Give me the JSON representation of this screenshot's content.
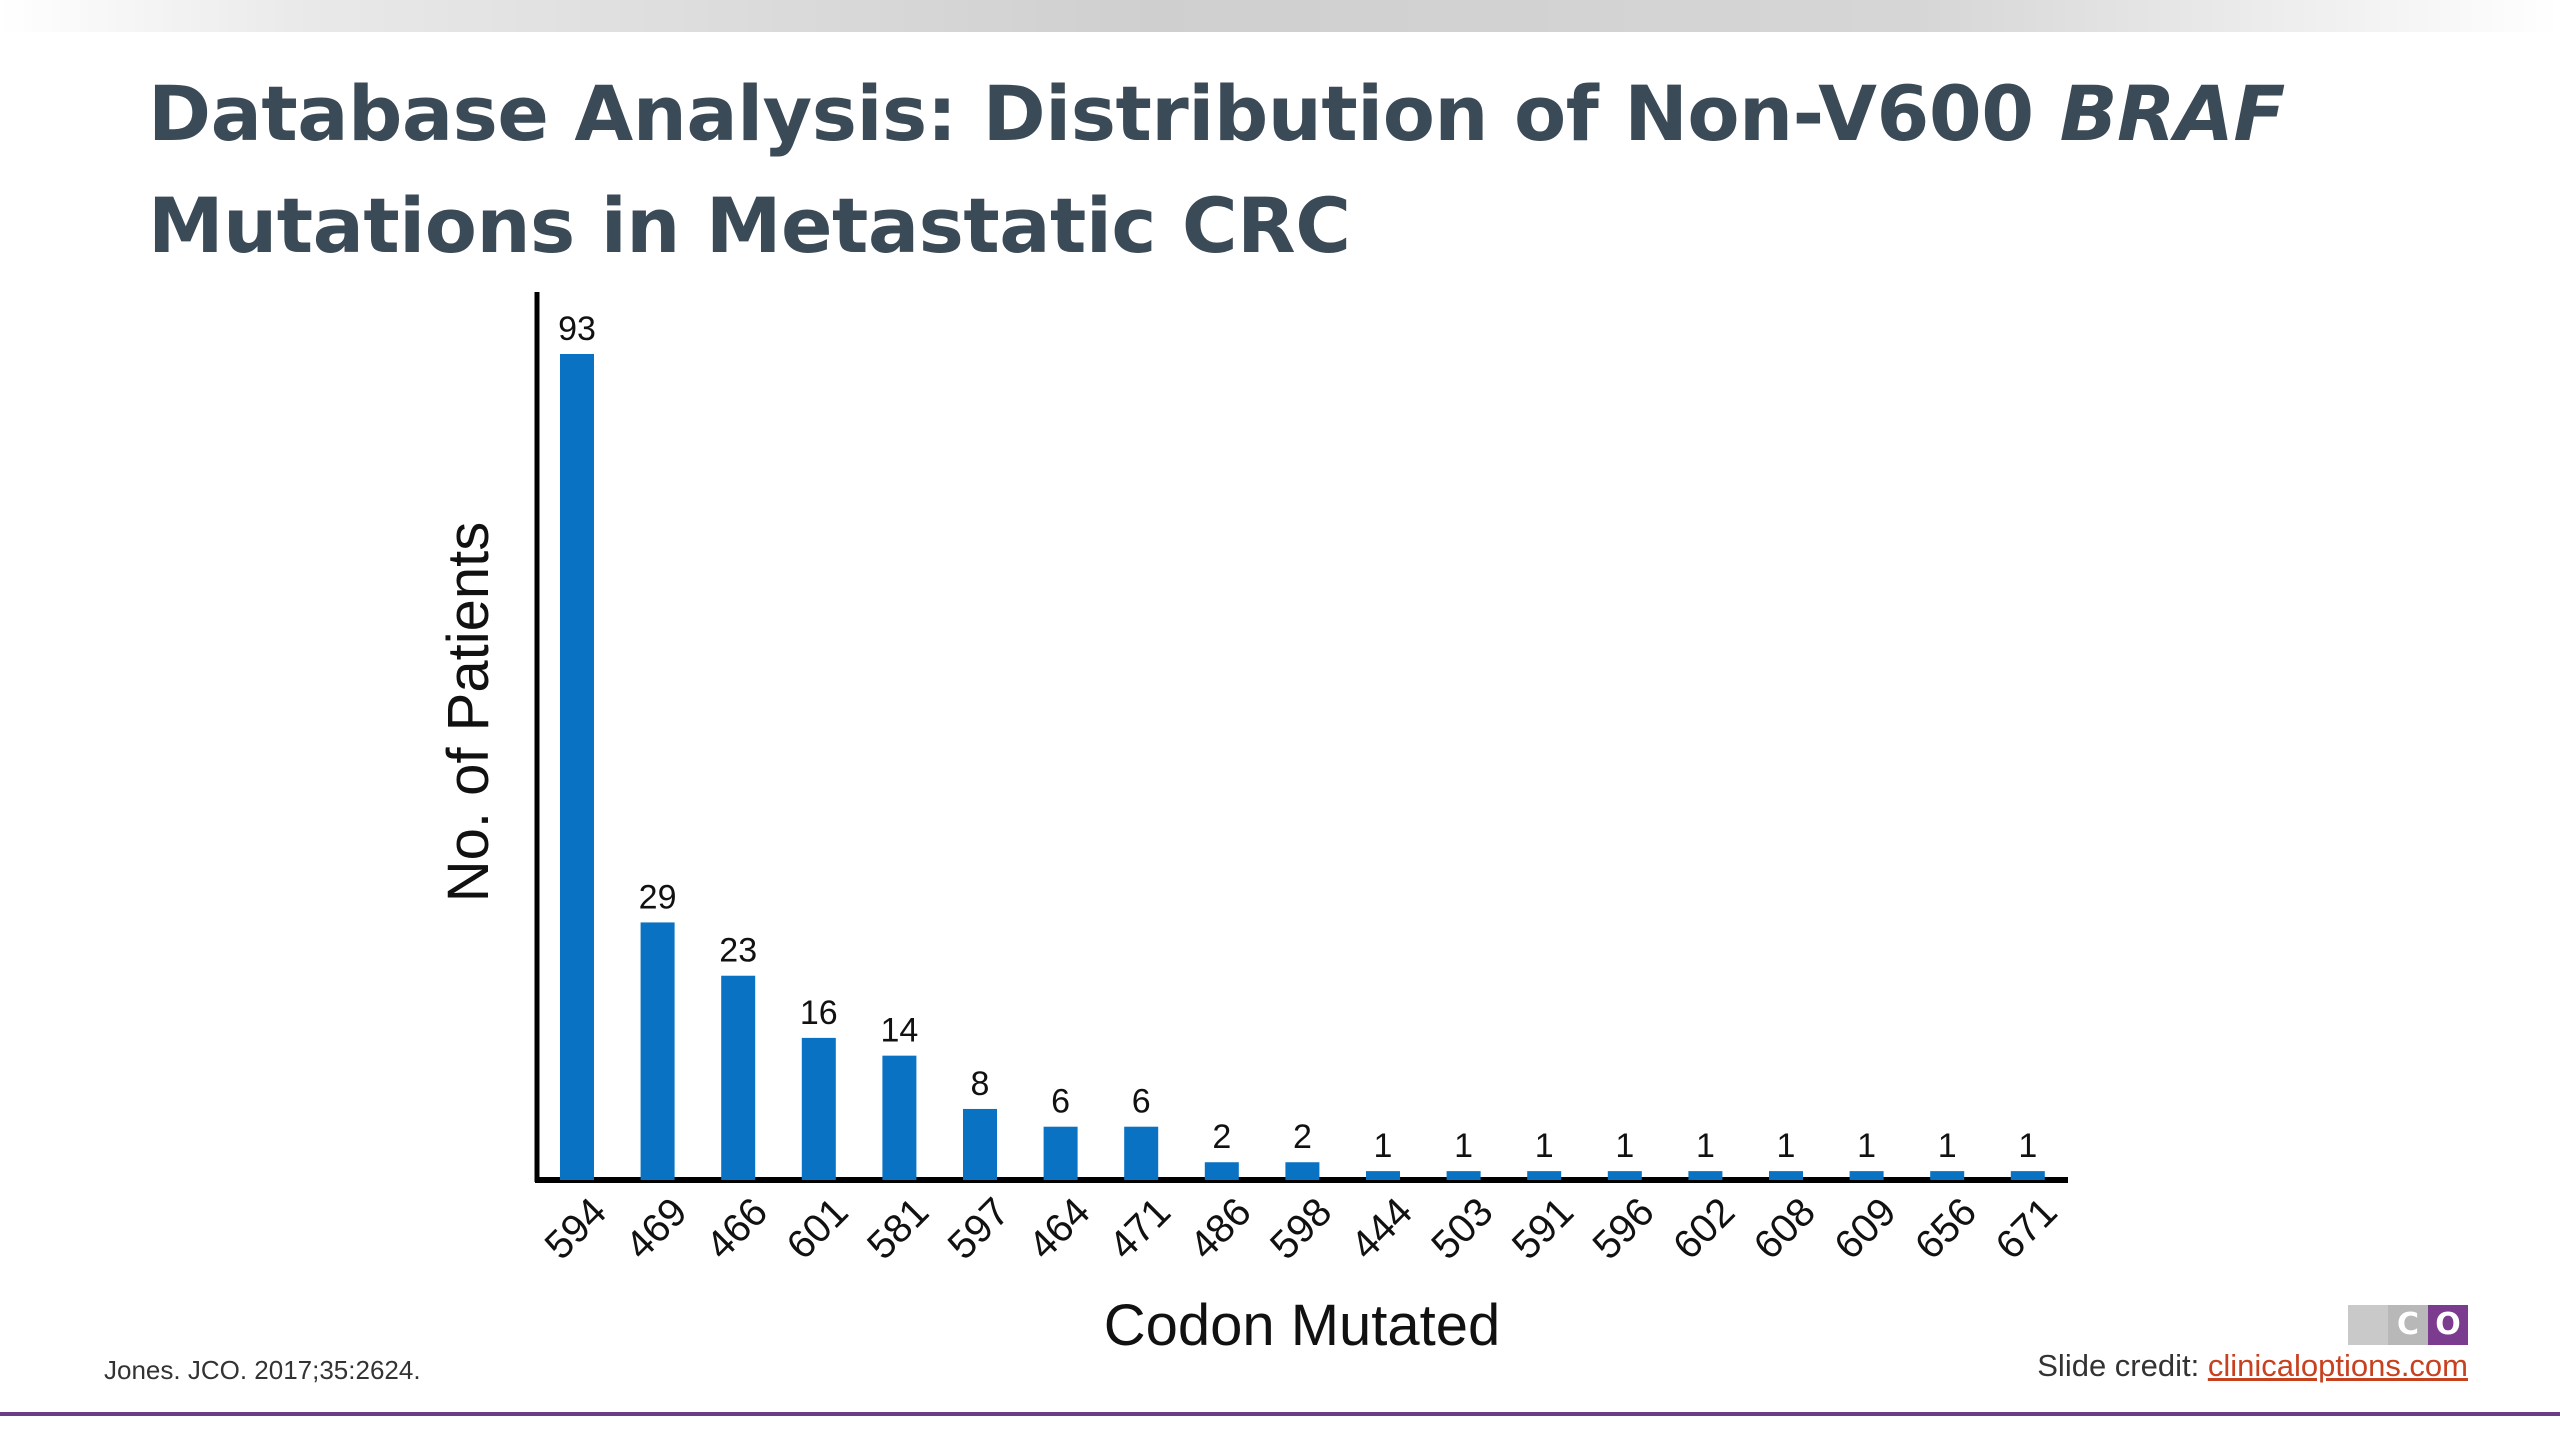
{
  "slide": {
    "title_part1": "Database Analysis: Distribution of Non-V600 ",
    "title_italic": "BRAF",
    "title_part2": "Mutations in Metastatic CRC",
    "citation": "Jones. JCO. 2017;35:2624.",
    "credit_label": "Slide credit: ",
    "credit_link": "clinicaloptions.com",
    "logo_letters": [
      "C",
      "O"
    ]
  },
  "colors": {
    "bar": "#0a72c2",
    "title": "#3b4a57",
    "accent_rule": "#6a3d86",
    "link": "#c8411f"
  },
  "chart_data": {
    "type": "bar",
    "title": "",
    "xlabel": "Codon Mutated",
    "ylabel": "No. of Patients",
    "categories": [
      "594",
      "469",
      "466",
      "601",
      "581",
      "597",
      "464",
      "471",
      "486",
      "598",
      "444",
      "503",
      "591",
      "596",
      "602",
      "608",
      "609",
      "656",
      "671"
    ],
    "values": [
      93,
      29,
      23,
      16,
      14,
      8,
      6,
      6,
      2,
      2,
      1,
      1,
      1,
      1,
      1,
      1,
      1,
      1,
      1
    ],
    "ylim": [
      0,
      100
    ],
    "data_labels": true,
    "grid": false,
    "legend": "none"
  }
}
